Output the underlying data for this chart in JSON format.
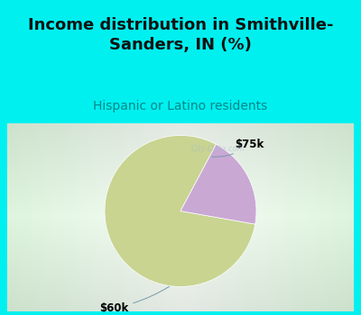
{
  "title_line1": "Income distribution in Smithville-",
  "title_line2": "Sanders, IN (%)",
  "subtitle": "Hispanic or Latino residents",
  "slices": [
    80,
    20
  ],
  "slice_colors": [
    "#c8d490",
    "#c9a8d4"
  ],
  "bg_cyan": "#00f0f0",
  "title_fontsize": 13,
  "subtitle_fontsize": 10,
  "label_fontsize": 8.5,
  "startangle": 62,
  "watermark": "City-Data.com",
  "label_60k": "$60k",
  "label_75k": "$75k",
  "chart_bg_left": "#b8e8c8",
  "chart_bg_center": "#eef8f0",
  "subtitle_color": "#008888",
  "title_color": "#111111",
  "border_cyan": "#00f0f0"
}
